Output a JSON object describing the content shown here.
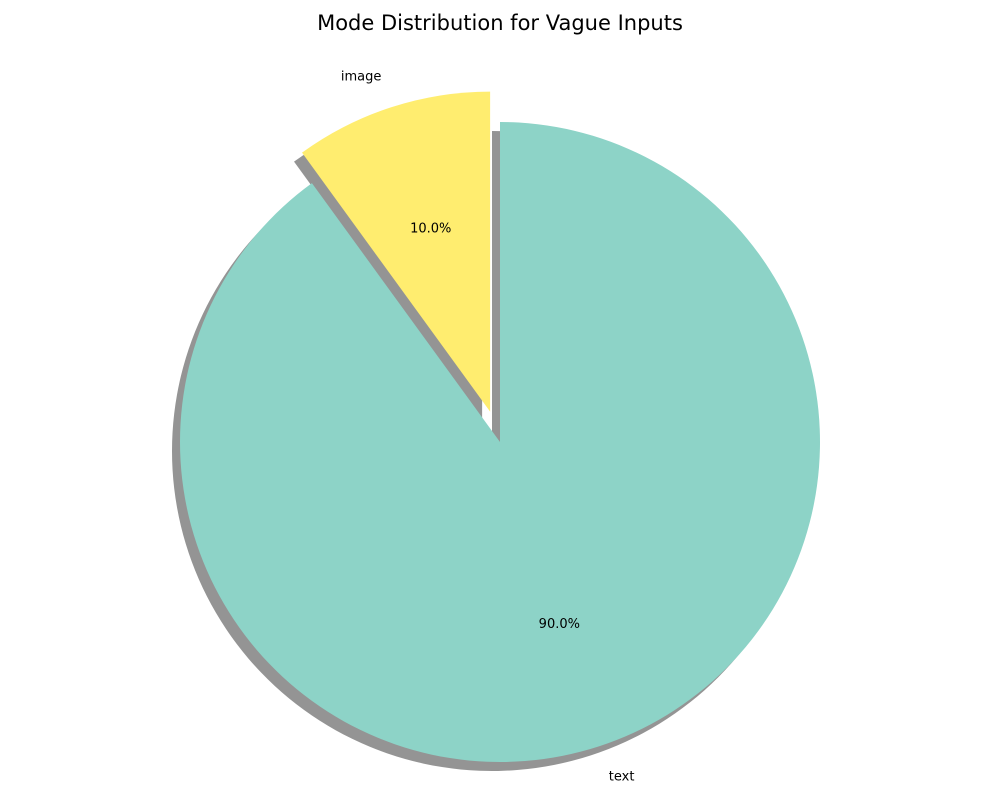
{
  "chart_data": {
    "type": "pie",
    "title": "Mode Distribution for Vague Inputs",
    "categories": [
      "text",
      "image"
    ],
    "values": [
      90.0,
      10.0
    ],
    "percent_labels": [
      "90.0%",
      "10.0%"
    ],
    "colors": [
      "#8dd3c7",
      "#ffed6f"
    ],
    "explode": [
      0,
      0.1
    ],
    "start_angle": 90,
    "counterclock": false,
    "shadow": true,
    "legend": false
  }
}
